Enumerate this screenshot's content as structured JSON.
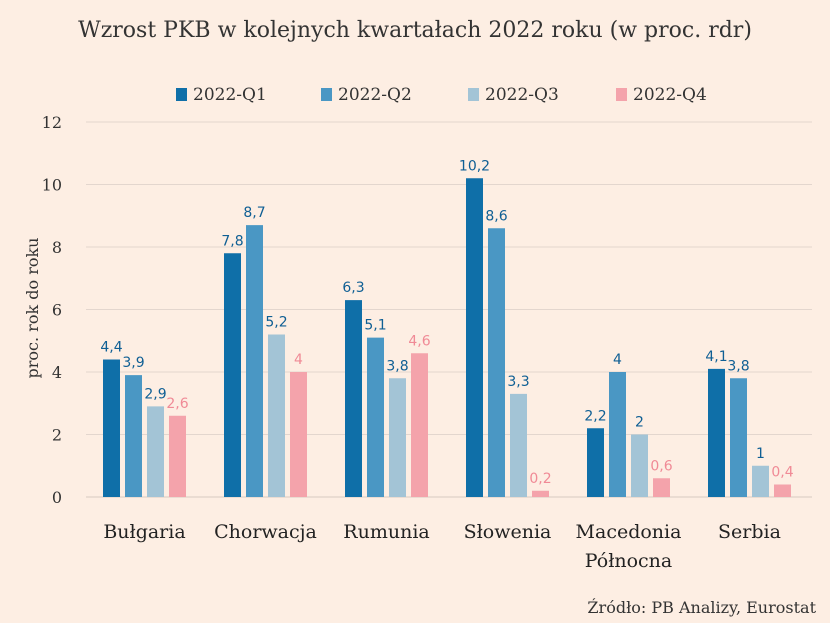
{
  "chart_data": {
    "type": "bar",
    "title": "Wzrost PKB w kolejnych kwartałach 2022 roku (w proc. rdr)",
    "ylabel": "proc. rok do roku",
    "xlabel": "",
    "ylim": [
      0,
      12
    ],
    "yticks": [
      0,
      2,
      4,
      6,
      8,
      10,
      12
    ],
    "grid": true,
    "legend_position": "top",
    "categories": [
      [
        "Bułgaria"
      ],
      [
        "Chorwacja"
      ],
      [
        "Rumunia"
      ],
      [
        "Słowenia"
      ],
      [
        "Macedonia",
        "Północna"
      ],
      [
        "Serbia"
      ]
    ],
    "series": [
      {
        "name": "2022-Q1",
        "color": "#0f6fa8",
        "label_color": "#0f5f94",
        "values": [
          4.4,
          7.8,
          6.3,
          10.2,
          2.2,
          4.1
        ],
        "labels": [
          "4,4",
          "7,8",
          "6,3",
          "10,2",
          "2,2",
          "4,1"
        ]
      },
      {
        "name": "2022-Q2",
        "color": "#4a97c4",
        "label_color": "#0f5f94",
        "values": [
          3.9,
          8.7,
          5.1,
          8.6,
          4.0,
          3.8
        ],
        "labels": [
          "3,9",
          "8,7",
          "5,1",
          "8,6",
          "4",
          "3,8"
        ]
      },
      {
        "name": "2022-Q3",
        "color": "#a3c4d6",
        "label_color": "#0f5f94",
        "values": [
          2.9,
          5.2,
          3.8,
          3.3,
          2.0,
          1.0
        ],
        "labels": [
          "2,9",
          "5,2",
          "3,8",
          "3,3",
          "2",
          "1"
        ]
      },
      {
        "name": "2022-Q4",
        "color": "#f4a3ab",
        "label_color": "#f08a96",
        "values": [
          2.6,
          4.0,
          4.6,
          0.2,
          0.6,
          0.4
        ],
        "labels": [
          "2,6",
          "4",
          "4,6",
          "0,2",
          "0,6",
          "0,4"
        ]
      }
    ]
  },
  "source": "Źródło: PB Analizy, Eurostat"
}
